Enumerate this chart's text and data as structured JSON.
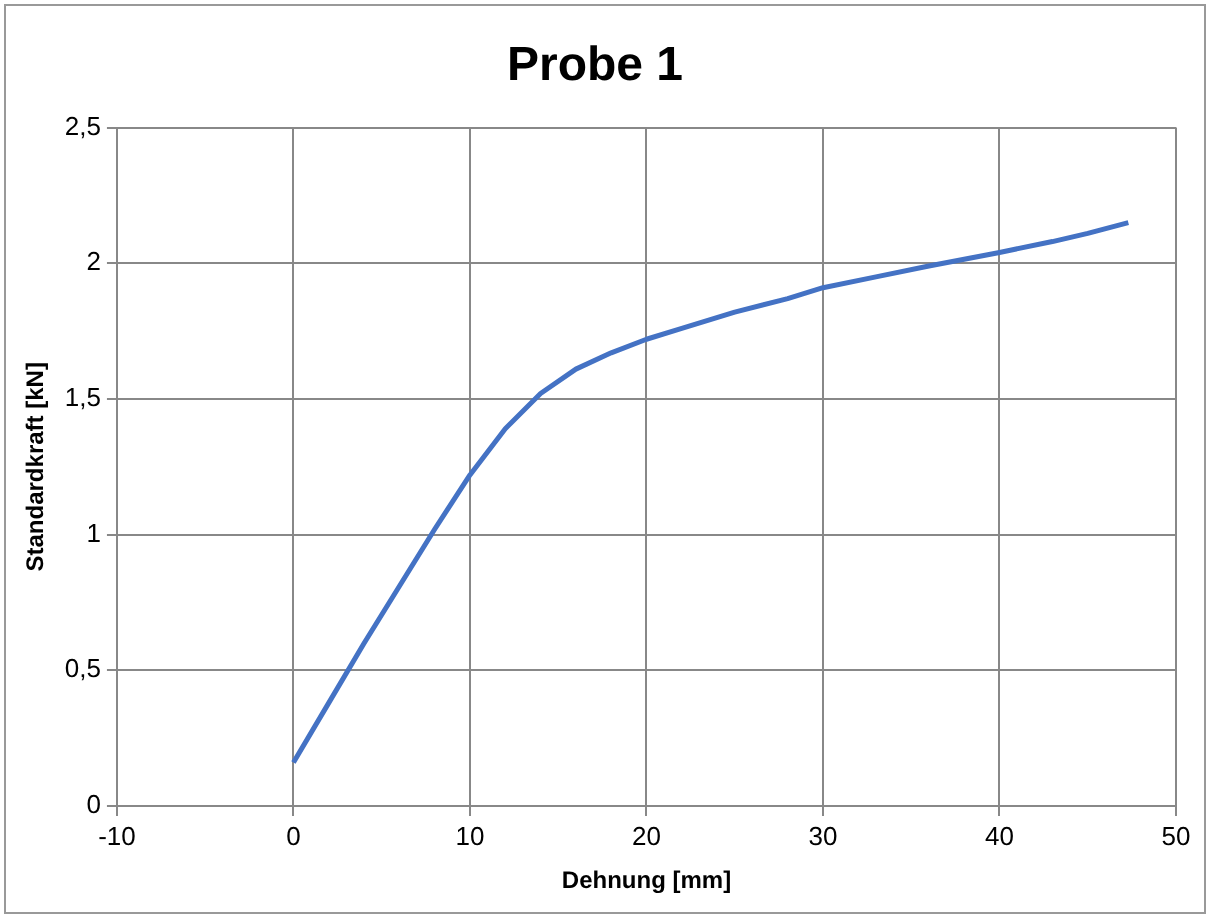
{
  "chart_data": {
    "type": "line",
    "title": "Probe 1",
    "xlabel": "Dehnung [mm]",
    "ylabel": "Standardkraft [kN]",
    "series": [
      {
        "color": "#4472c4",
        "x": [
          0,
          2,
          4,
          6,
          8,
          10,
          12,
          14,
          16,
          18,
          20,
          22,
          25,
          28,
          30,
          33,
          36,
          40,
          43,
          45,
          47.3
        ],
        "values": [
          0.16,
          0.38,
          0.6,
          0.81,
          1.02,
          1.22,
          1.39,
          1.52,
          1.61,
          1.67,
          1.72,
          1.76,
          1.82,
          1.87,
          1.91,
          1.95,
          1.99,
          2.04,
          2.08,
          2.11,
          2.15
        ]
      }
    ],
    "xlim": [
      -10,
      50
    ],
    "xticks": [
      -10,
      0,
      10,
      20,
      30,
      40,
      50
    ],
    "ylim": [
      0,
      2.5
    ],
    "yticks": [
      0,
      {
        "value": 0.5,
        "label": "0,5"
      },
      1,
      {
        "value": 1.5,
        "label": "1,5"
      },
      2,
      {
        "value": 2.5,
        "label": "2,5"
      }
    ],
    "grid": true,
    "legend": false,
    "marker": "none",
    "line_style": "solid"
  }
}
